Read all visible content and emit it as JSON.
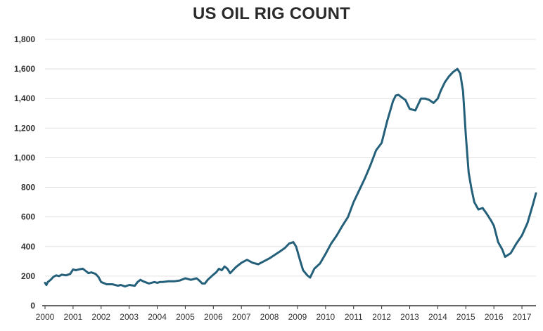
{
  "chart_data": {
    "type": "line",
    "title": "US OIL RIG COUNT",
    "xlabel": "",
    "ylabel": "",
    "xlim": [
      2000,
      2017.5
    ],
    "ylim": [
      0,
      1800
    ],
    "y_ticks": [
      0,
      200,
      400,
      600,
      800,
      1000,
      1200,
      1400,
      1600,
      1800
    ],
    "y_tick_labels": [
      "0",
      "200",
      "400",
      "600",
      "800",
      "1,000",
      "1,200",
      "1,400",
      "1,600",
      "1,800"
    ],
    "x_ticks": [
      2000,
      2001,
      2002,
      2003,
      2004,
      2005,
      2006,
      2007,
      2008,
      2009,
      2010,
      2011,
      2012,
      2013,
      2014,
      2015,
      2016,
      2017
    ],
    "x_tick_labels": [
      "2000",
      "2001",
      "2002",
      "2003",
      "2004",
      "2005",
      "2006",
      "2007",
      "2008",
      "2009",
      "2010",
      "2011",
      "2012",
      "2013",
      "2014",
      "2015",
      "2016",
      "2017"
    ],
    "grid": "horizontal",
    "legend": "none",
    "colors": {
      "line": "#25607a",
      "grid": "#e2e2e2",
      "axis": "#333333"
    },
    "series": [
      {
        "x": [
          2000.0,
          2000.05,
          2000.1,
          2000.2,
          2000.3,
          2000.4,
          2000.5,
          2000.6,
          2000.75,
          2000.9,
          2001.0,
          2001.1,
          2001.2,
          2001.35,
          2001.45,
          2001.55,
          2001.65,
          2001.8,
          2001.9,
          2002.0,
          2002.2,
          2002.4,
          2002.6,
          2002.7,
          2002.85,
          2003.0,
          2003.2,
          2003.3,
          2003.4,
          2003.5,
          2003.7,
          2003.9,
          2004.0,
          2004.1,
          2004.2,
          2004.4,
          2004.6,
          2004.8,
          2005.0,
          2005.1,
          2005.2,
          2005.4,
          2005.5,
          2005.6,
          2005.7,
          2005.8,
          2006.0,
          2006.1,
          2006.2,
          2006.3,
          2006.4,
          2006.5,
          2006.6,
          2006.7,
          2006.8,
          2007.0,
          2007.2,
          2007.4,
          2007.6,
          2007.8,
          2008.0,
          2008.2,
          2008.4,
          2008.55,
          2008.7,
          2008.85,
          2008.95,
          2009.1,
          2009.2,
          2009.35,
          2009.45,
          2009.6,
          2009.8,
          2010.0,
          2010.2,
          2010.4,
          2010.6,
          2010.8,
          2011.0,
          2011.2,
          2011.4,
          2011.6,
          2011.8,
          2012.0,
          2012.2,
          2012.4,
          2012.5,
          2012.6,
          2012.7,
          2012.85,
          2013.0,
          2013.2,
          2013.4,
          2013.55,
          2013.7,
          2013.85,
          2014.0,
          2014.1,
          2014.25,
          2014.4,
          2014.55,
          2014.7,
          2014.8,
          2014.9,
          2015.0,
          2015.1,
          2015.2,
          2015.3,
          2015.45,
          2015.6,
          2015.75,
          2015.9,
          2016.0,
          2016.15,
          2016.3,
          2016.4,
          2016.6,
          2016.8,
          2017.0,
          2017.2,
          2017.4,
          2017.5
        ],
        "y": [
          155,
          140,
          160,
          175,
          195,
          205,
          200,
          210,
          205,
          215,
          245,
          240,
          245,
          250,
          235,
          220,
          225,
          215,
          195,
          160,
          145,
          145,
          135,
          140,
          130,
          140,
          135,
          160,
          175,
          165,
          150,
          160,
          155,
          160,
          160,
          165,
          165,
          170,
          185,
          180,
          175,
          185,
          170,
          150,
          150,
          175,
          210,
          225,
          250,
          240,
          265,
          250,
          220,
          240,
          260,
          290,
          310,
          290,
          280,
          300,
          320,
          345,
          370,
          390,
          420,
          430,
          400,
          300,
          240,
          205,
          190,
          250,
          285,
          350,
          420,
          475,
          540,
          600,
          700,
          780,
          860,
          950,
          1050,
          1100,
          1250,
          1380,
          1420,
          1425,
          1410,
          1390,
          1330,
          1320,
          1400,
          1400,
          1390,
          1370,
          1400,
          1450,
          1510,
          1550,
          1580,
          1600,
          1570,
          1450,
          1150,
          900,
          790,
          700,
          650,
          660,
          620,
          575,
          540,
          430,
          380,
          330,
          355,
          420,
          475,
          560,
          690,
          760
        ]
      }
    ]
  }
}
